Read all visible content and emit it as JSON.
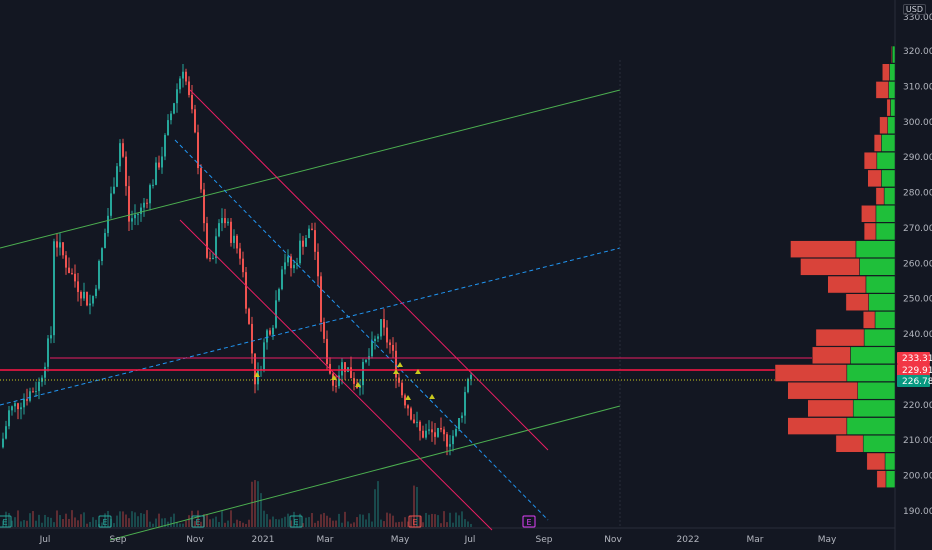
{
  "currency_label": "USD",
  "price_axis": {
    "ticks": [
      "320.00",
      "310.00",
      "300.00",
      "290.00",
      "280.00",
      "270.00",
      "260.00",
      "250.00",
      "240.00",
      "230.00",
      "220.00",
      "210.00",
      "200.00",
      "190.00"
    ],
    "top_partial_label": "330.00"
  },
  "time_axis": {
    "labels": [
      "Jul",
      "Sep",
      "Nov",
      "2021",
      "Mar",
      "May",
      "Jul",
      "Sep",
      "Nov",
      "2022",
      "Mar",
      "May"
    ]
  },
  "price_tags": [
    {
      "label": "233.31",
      "color": "#f23645"
    },
    {
      "label": "229.91",
      "color": "#f23645"
    },
    {
      "label": "226.78",
      "color": "#089981"
    }
  ],
  "earnings_markers": [
    "E",
    "E",
    "E",
    "E",
    "E",
    "E"
  ],
  "colors": {
    "background": "#131722",
    "up": "#26a69a",
    "down": "#ef5350",
    "volume_profile_up": "#1fbf3a",
    "volume_profile_down": "#d9433a",
    "trend_red": "#e91e63",
    "trend_green": "#4caf50",
    "trend_blue_dashed": "#2196f3",
    "hline_red": "#ff1744",
    "hline_pink": "#e91e63"
  },
  "chart_data": {
    "type": "candlestick",
    "ylim": [
      186,
      330
    ],
    "volume_profile": [
      {
        "price": 319,
        "up": 0.3,
        "down": 0.1
      },
      {
        "price": 314,
        "up": 0.6,
        "down": 0.8
      },
      {
        "price": 309,
        "up": 0.7,
        "down": 1.4
      },
      {
        "price": 304,
        "up": 0.5,
        "down": 0.4
      },
      {
        "price": 299,
        "up": 0.8,
        "down": 0.9
      },
      {
        "price": 294,
        "up": 1.5,
        "down": 0.8
      },
      {
        "price": 289,
        "up": 2.0,
        "down": 1.4
      },
      {
        "price": 284,
        "up": 1.5,
        "down": 1.5
      },
      {
        "price": 279,
        "up": 1.2,
        "down": 0.9
      },
      {
        "price": 274,
        "up": 2.1,
        "down": 1.6
      },
      {
        "price": 269,
        "up": 2.1,
        "down": 1.3
      },
      {
        "price": 264,
        "up": 4.3,
        "down": 7.2
      },
      {
        "price": 259,
        "up": 3.9,
        "down": 6.5
      },
      {
        "price": 254,
        "up": 3.2,
        "down": 4.2
      },
      {
        "price": 249,
        "up": 2.9,
        "down": 2.5
      },
      {
        "price": 244,
        "up": 2.2,
        "down": 1.3
      },
      {
        "price": 239,
        "up": 3.4,
        "down": 5.3
      },
      {
        "price": 234,
        "up": 4.9,
        "down": 4.2
      },
      {
        "price": 229,
        "up": 5.3,
        "down": 7.9
      },
      {
        "price": 224,
        "up": 4.1,
        "down": 7.7
      },
      {
        "price": 219,
        "up": 4.6,
        "down": 5.0
      },
      {
        "price": 214,
        "up": 5.3,
        "down": 6.5
      },
      {
        "price": 209,
        "up": 3.5,
        "down": 3.0
      },
      {
        "price": 204,
        "up": 1.1,
        "down": 2.0
      },
      {
        "price": 199,
        "up": 1.0,
        "down": 1.0
      }
    ]
  }
}
